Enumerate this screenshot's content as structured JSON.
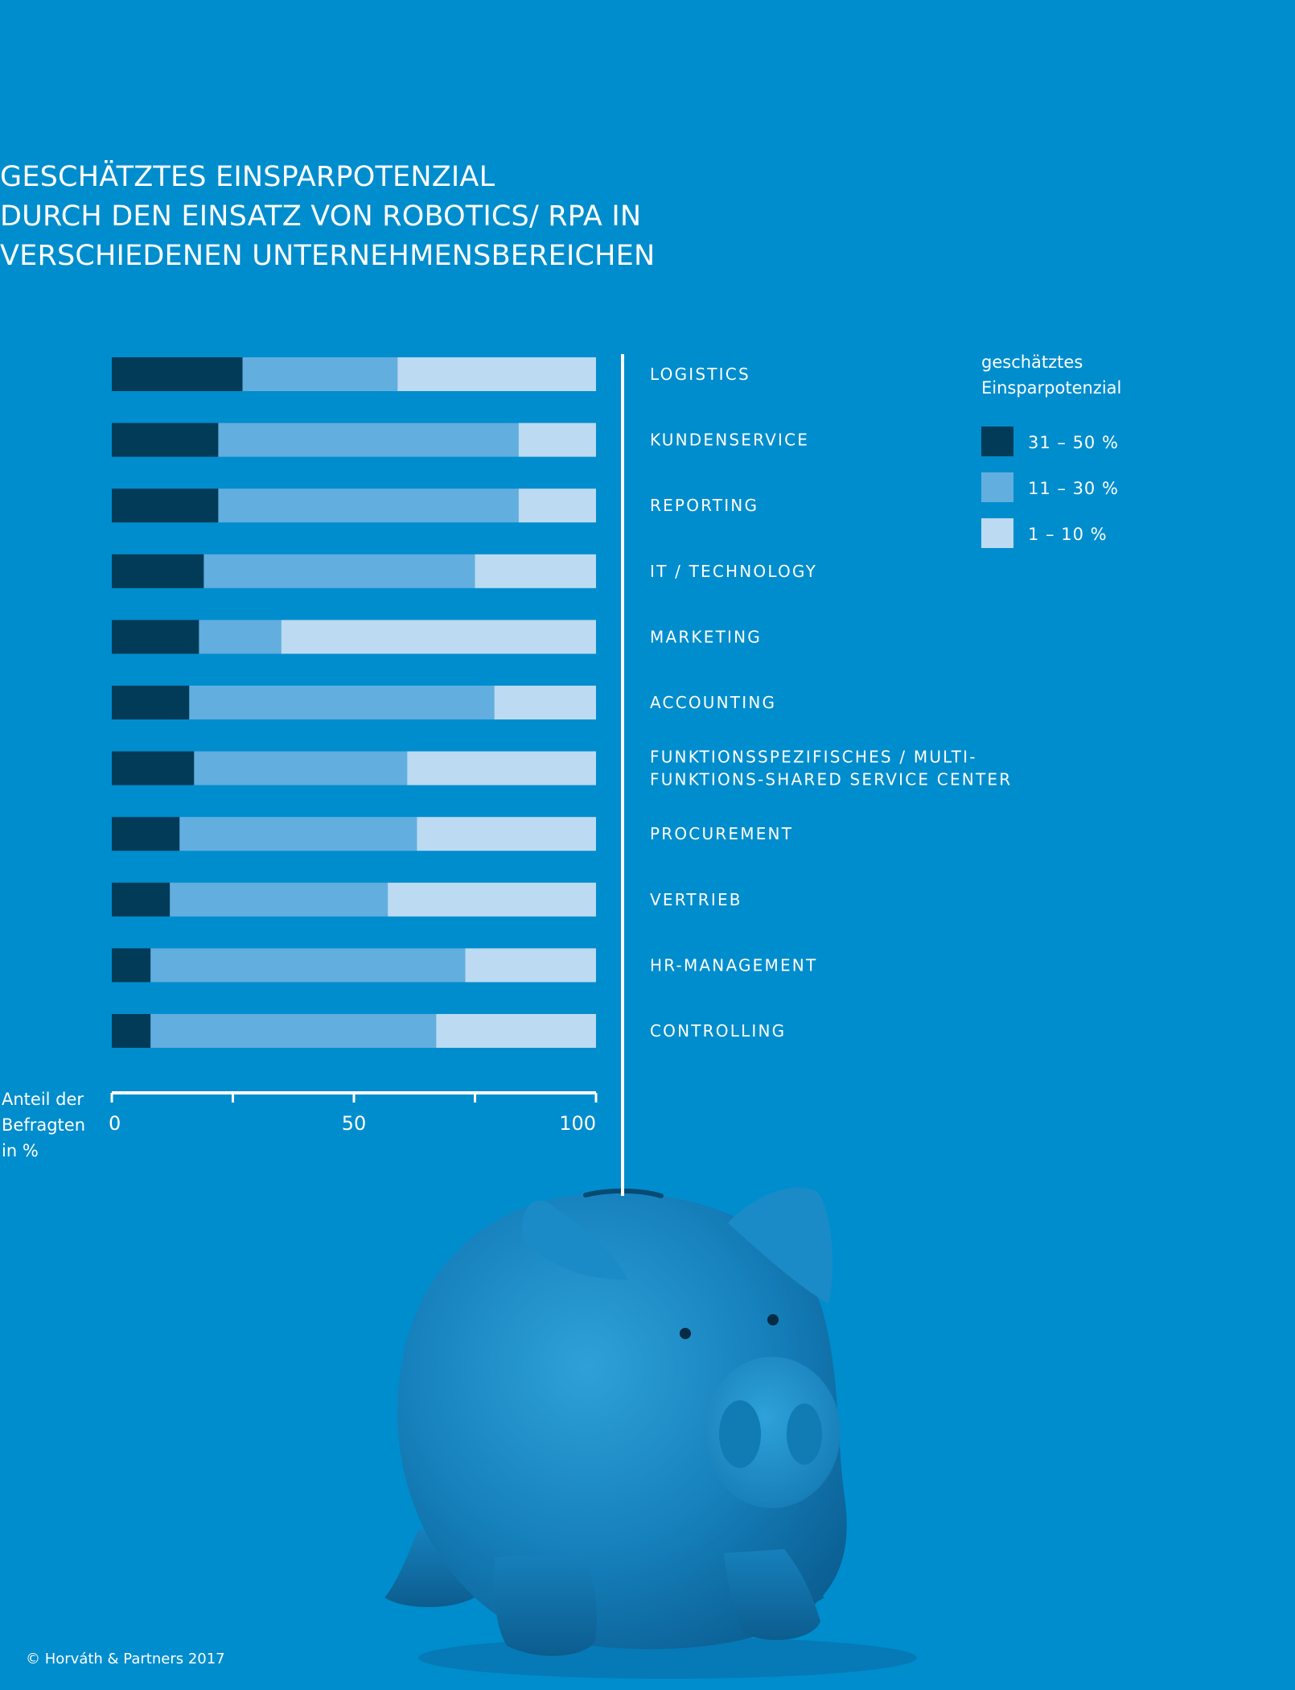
{
  "title_lines": [
    "GESCHÄTZTES EINSPARPOTENZIAL",
    "DURCH DEN EINSATZ VON ROBOTICS/ RPA IN",
    "VERSCHIEDENEN UNTERNEHMENSBEREICHEN"
  ],
  "copyright": "© Horváth & Partners 2017",
  "colors": {
    "background": "#008dcd",
    "series_dark": "#023b58",
    "series_mid": "#62aedf",
    "series_light": "#bcdaf1",
    "axis": "#ffffff"
  },
  "chart_data": {
    "type": "bar",
    "orientation": "horizontal",
    "stacked": true,
    "categories": [
      [
        "LOGISTICS"
      ],
      [
        "KUNDENSERVICE"
      ],
      [
        "REPORTING"
      ],
      [
        "IT / TECHNOLOGY"
      ],
      [
        "MARKETING"
      ],
      [
        "ACCOUNTING"
      ],
      [
        "FUNKTIONSSPEZIFISCHES / MULTI-",
        "FUNKTIONS-SHARED SERVICE CENTER"
      ],
      [
        "PROCUREMENT"
      ],
      [
        "VERTRIEB"
      ],
      [
        "HR-MANAGEMENT"
      ],
      [
        "CONTROLLING"
      ]
    ],
    "series": [
      {
        "name": "31 – 50 %",
        "color": "#023b58",
        "values": [
          27,
          22,
          22,
          19,
          18,
          16,
          17,
          14,
          12,
          8,
          8
        ]
      },
      {
        "name": "11 – 30 %",
        "color": "#62aedf",
        "values": [
          32,
          62,
          62,
          56,
          17,
          63,
          44,
          49,
          45,
          65,
          59
        ]
      },
      {
        "name": "1 – 10 %",
        "color": "#bcdaf1",
        "values": [
          41,
          16,
          16,
          25,
          65,
          21,
          39,
          37,
          43,
          27,
          33
        ]
      }
    ],
    "xlim": [
      0,
      100
    ],
    "x_ticks": [
      0,
      25,
      50,
      75,
      100
    ],
    "x_tick_labels": [
      "0",
      "",
      "50",
      "",
      "100"
    ],
    "xlabel_lines": [
      "Anteil  der",
      "Befragten",
      "in %"
    ],
    "legend_title_lines": [
      "geschätztes",
      "Einsparpotenzial"
    ],
    "legend_position": "top-right",
    "grid": false
  },
  "illustration": {
    "name": "piggy-bank",
    "color": "#1a87c0"
  }
}
